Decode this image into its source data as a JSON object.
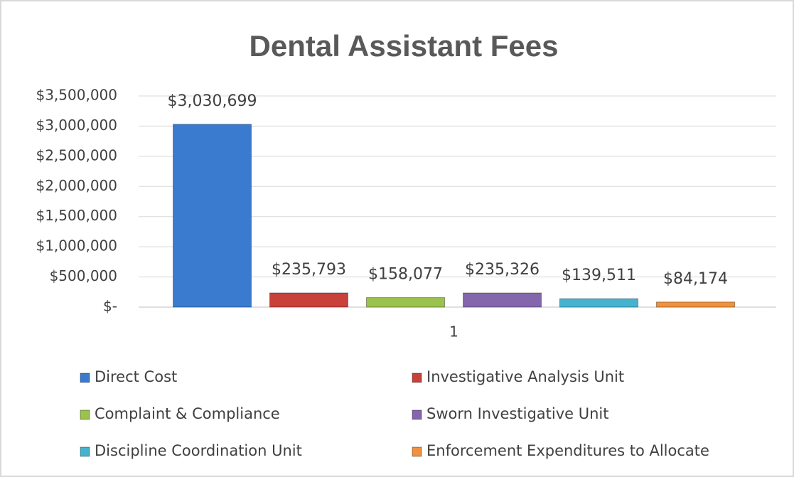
{
  "chart_data": {
    "type": "bar",
    "title": "Dental Assistant Fees",
    "categories": [
      "1"
    ],
    "series": [
      {
        "name": "Direct Cost",
        "color": "#3b7bcf",
        "values": [
          3030699
        ],
        "value_labels": [
          "$3,030,699"
        ]
      },
      {
        "name": "Investigative Analysis Unit",
        "color": "#c8413a",
        "values": [
          235793
        ],
        "value_labels": [
          "$235,793"
        ]
      },
      {
        "name": "Complaint & Compliance",
        "color": "#9bc24f",
        "values": [
          158077
        ],
        "value_labels": [
          "$158,077"
        ]
      },
      {
        "name": "Sworn Investigative Unit",
        "color": "#8466ad",
        "values": [
          235326
        ],
        "value_labels": [
          "$235,326"
        ]
      },
      {
        "name": "Discipline Coordination Unit",
        "color": "#45b3cf",
        "values": [
          139511
        ],
        "value_labels": [
          "$139,511"
        ]
      },
      {
        "name": "Enforcement Expenditures to Allocate",
        "color": "#f0913e",
        "values": [
          84174
        ],
        "value_labels": [
          "$84,174"
        ]
      }
    ],
    "ylim": [
      0,
      3500000
    ],
    "yticks": [
      {
        "value": 0,
        "label": "$-"
      },
      {
        "value": 500000,
        "label": "$500,000"
      },
      {
        "value": 1000000,
        "label": "$1,000,000"
      },
      {
        "value": 1500000,
        "label": "$1,500,000"
      },
      {
        "value": 2000000,
        "label": "$2,000,000"
      },
      {
        "value": 2500000,
        "label": "$2,500,000"
      },
      {
        "value": 3000000,
        "label": "$3,000,000"
      },
      {
        "value": 3500000,
        "label": "$3,500,000"
      }
    ],
    "grid": true,
    "legend": "bottom"
  }
}
